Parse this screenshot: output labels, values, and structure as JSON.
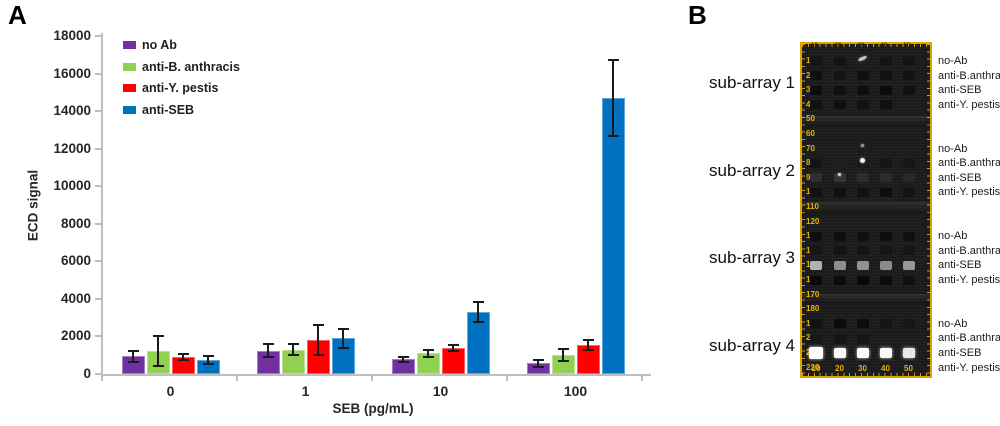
{
  "panel_a": {
    "label": "A"
  },
  "chart_data": {
    "type": "bar",
    "title": "",
    "xlabel": "SEB (pg/mL)",
    "ylabel": "ECD signal",
    "ylim": [
      0,
      18000
    ],
    "ytick_step": 2000,
    "categories": [
      "0",
      "1",
      "10",
      "100"
    ],
    "series": [
      {
        "name": "no Ab",
        "color": "#7030A0",
        "values": [
          950,
          1250,
          780,
          570
        ],
        "errors": [
          300,
          350,
          150,
          200
        ]
      },
      {
        "name": "anti-B. anthracis",
        "color": "#92D050",
        "values": [
          1250,
          1300,
          1100,
          1000
        ],
        "errors": [
          800,
          280,
          200,
          320
        ]
      },
      {
        "name": "anti-Y. pestis",
        "color": "#FF0000",
        "values": [
          900,
          1800,
          1400,
          1550
        ],
        "errors": [
          160,
          800,
          160,
          250
        ]
      },
      {
        "name": "anti-SEB",
        "color": "#0070C0",
        "values": [
          750,
          1900,
          3300,
          14700
        ],
        "errors": [
          200,
          500,
          550,
          2000
        ]
      }
    ],
    "legend_position": "inside-top-left",
    "grid": false
  },
  "panel_b": {
    "label": "B",
    "subarray_names": [
      "sub-array 1",
      "sub-array 2",
      "sub-array 3",
      "sub-array 4"
    ],
    "row_labels": [
      "no-Ab",
      "anti-B.anthracis",
      "anti-SEB",
      "anti-Y. pestis"
    ],
    "subarray_start_rulers": [
      10,
      70,
      130,
      190
    ],
    "left_ruler": [
      10,
      20,
      30,
      40,
      50,
      60,
      70,
      80,
      90,
      100,
      110,
      120,
      130,
      140,
      150,
      160,
      170,
      180,
      190,
      200,
      210,
      220
    ],
    "bottom_ruler": [
      10,
      20,
      30,
      40,
      50
    ],
    "top_ruler": [
      10,
      20,
      30,
      40,
      50
    ],
    "frame_color": "#D9A404",
    "background_color": "#191919",
    "spots": [
      [
        [
          "#151515",
          "#131313",
          null,
          "#141414",
          "#151515"
        ],
        [
          "#0f0f0f",
          "#141414",
          "#111111",
          "#121212",
          "#131313"
        ],
        [
          "#0c0c0c",
          "#101010",
          "#0e0e0e",
          "#0b0b0b",
          "#101010"
        ],
        [
          "#111111",
          "#0f0f0f",
          "#121212",
          "#101010",
          null
        ]
      ],
      [
        [
          null,
          null,
          "#1d1d1d",
          null,
          null
        ],
        [
          "#141414",
          "#1e1e1e",
          "#191919",
          "#151515",
          "#161616"
        ],
        [
          "#2f2f2f",
          "#333333",
          "#2d2d2d",
          "#2b2b2b",
          "#292929"
        ],
        [
          "#121212",
          "#101010",
          "#111111",
          "#0e0e0e",
          "#131313"
        ]
      ],
      [
        [
          "#0f0f0f",
          "#0d0d0d",
          "#101010",
          "#0e0e0e",
          "#0f0f0f"
        ],
        [
          "#161616",
          "#141414",
          "#151515",
          "#161616",
          "#151515"
        ],
        [
          "#b2b2b2",
          "#8e8e8e",
          "#919191",
          "#8b8b8b",
          "#979797"
        ],
        [
          "#090909",
          "#0b0b0b",
          "#0a0a0a",
          "#0c0c0c",
          "#101010"
        ]
      ],
      [
        [
          "#121212",
          "#0b0b0b",
          "#0c0c0c",
          "#141414",
          "#161616"
        ],
        [
          "#181818",
          "#151515",
          "#161616",
          null,
          null
        ],
        [
          "#ffffff",
          "#fbfbfb",
          "#fdfdfd",
          "#f9f9f9",
          "#e8e8e8"
        ],
        [
          null,
          null,
          null,
          null,
          null
        ]
      ]
    ],
    "specks": [
      {
        "sub": 0,
        "row": 0,
        "col": 2,
        "w": 9,
        "h": 3,
        "color": "#c9c9c9",
        "rot": -25
      },
      {
        "sub": 1,
        "row": 0,
        "col": 2,
        "w": 3,
        "h": 3,
        "color": "#9a9a9a",
        "rot": 0
      },
      {
        "sub": 1,
        "row": 1,
        "col": 2,
        "w": 5,
        "h": 5,
        "color": "#efefef",
        "rot": 0
      },
      {
        "sub": 1,
        "row": 2,
        "col": 1,
        "w": 3,
        "h": 3,
        "color": "#d8d8d8",
        "rot": 0
      }
    ],
    "streaks": [
      {
        "y": 72,
        "h": 11
      },
      {
        "y": 158,
        "h": 12
      },
      {
        "y": 250,
        "h": 10
      }
    ]
  }
}
